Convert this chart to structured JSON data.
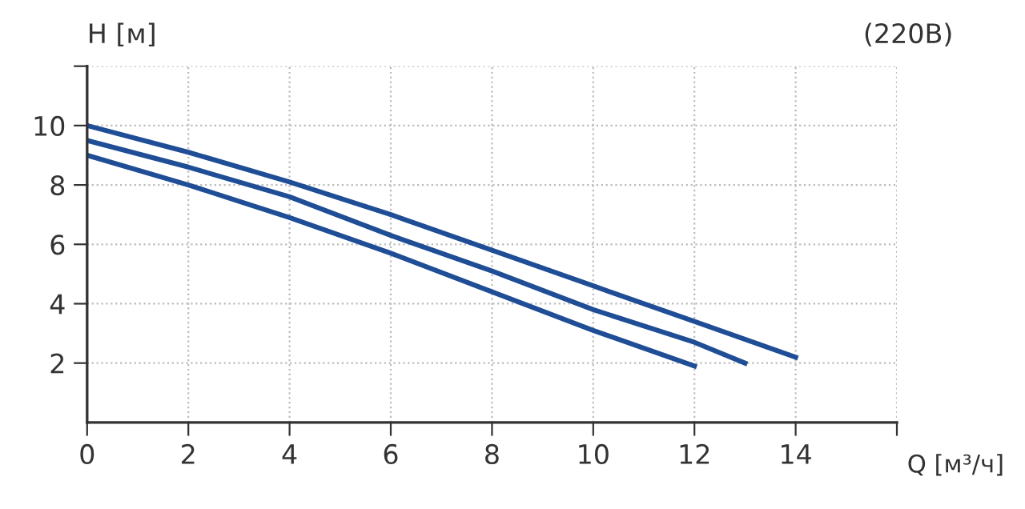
{
  "chart_data": {
    "type": "line",
    "title": "(220В)",
    "ylabel": "H [м]",
    "xlabel": "Q [м³/ч]",
    "series": [
      {
        "color": "#1f4e96",
        "x": [
          0,
          2,
          4,
          6,
          8,
          10,
          12,
          14
        ],
        "values": [
          10,
          9.1,
          8.1,
          7.0,
          5.8,
          4.6,
          3.4,
          2.2
        ]
      },
      {
        "color": "#1f4e96",
        "x": [
          0,
          2,
          4,
          6,
          8,
          10,
          12,
          13
        ],
        "values": [
          9.5,
          8.6,
          7.6,
          6.3,
          5.1,
          3.8,
          2.7,
          2.0
        ]
      },
      {
        "color": "#1f4e96",
        "x": [
          0,
          2,
          4,
          6,
          8,
          10,
          12
        ],
        "values": [
          9.0,
          8.0,
          6.9,
          5.7,
          4.4,
          3.1,
          1.9
        ]
      }
    ],
    "xlim": [
      0,
      16
    ],
    "xticks": [
      0,
      2,
      4,
      6,
      8,
      10,
      12,
      14,
      {
        "value": 16,
        "label": null
      }
    ],
    "ylim": [
      0,
      12
    ],
    "yticks": [
      2,
      4,
      6,
      8,
      10,
      {
        "value": 12,
        "label": null
      }
    ],
    "grid": true,
    "marker": "none",
    "line_style": "solid"
  }
}
